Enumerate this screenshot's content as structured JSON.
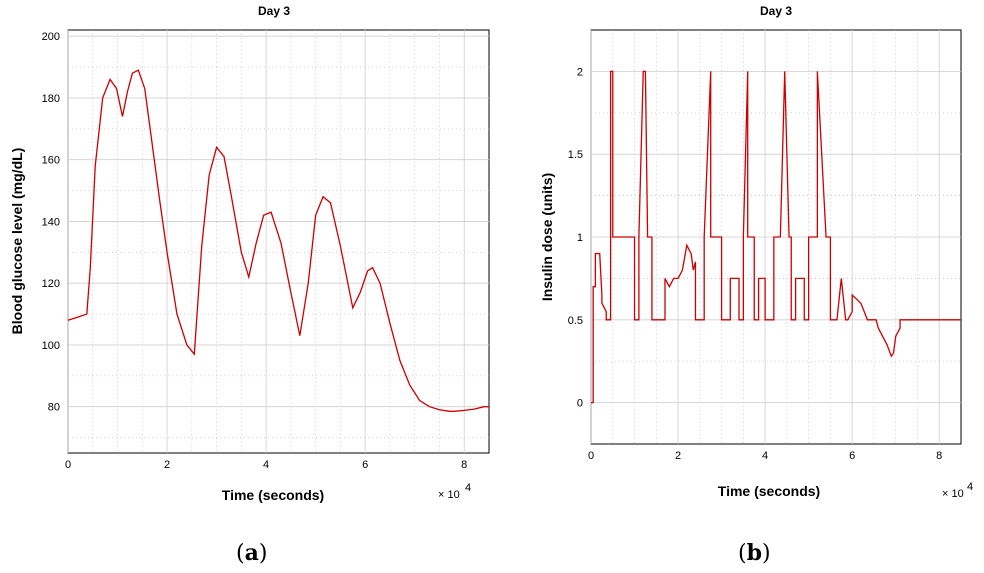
{
  "chart_data": [
    {
      "type": "line",
      "panel_label": "a",
      "title": "Day 3",
      "xlabel": "Time (seconds)",
      "ylabel": "Blood glucose level (mg/dL)",
      "x_exponent": "4",
      "xlim": [
        0,
        8.5
      ],
      "ylim": [
        65,
        202
      ],
      "xticks": [
        "0",
        "2",
        "4",
        "6",
        "8"
      ],
      "yticks": [
        "80",
        "100",
        "120",
        "140",
        "160",
        "180",
        "200"
      ],
      "grid": true,
      "color": "#cc0000",
      "series": [
        {
          "x": [
            0,
            0.2,
            0.38,
            0.45,
            0.55,
            0.7,
            0.85,
            0.98,
            1.1,
            1.2,
            1.3,
            1.42,
            1.55,
            1.7,
            1.85,
            2.0,
            2.2,
            2.4,
            2.55,
            2.7,
            2.85,
            3.0,
            3.15,
            3.3,
            3.5,
            3.65,
            3.8,
            3.95,
            4.1,
            4.3,
            4.5,
            4.68,
            4.85,
            5.0,
            5.15,
            5.3,
            5.5,
            5.75,
            5.9,
            6.05,
            6.15,
            6.3,
            6.5,
            6.7,
            6.9,
            7.1,
            7.3,
            7.5,
            7.7,
            7.8,
            8.0,
            8.2,
            8.4,
            8.5
          ],
          "y": [
            108,
            109,
            110,
            125,
            158,
            180,
            186,
            183,
            174,
            182,
            188,
            189,
            183,
            165,
            147,
            130,
            110,
            100,
            97,
            132,
            155,
            164,
            161,
            148,
            130,
            122,
            133,
            142,
            143,
            133,
            117,
            103,
            120,
            142,
            148,
            146,
            132,
            112,
            117,
            124,
            125,
            120,
            107,
            95,
            87,
            82,
            80,
            79,
            78.5,
            78.5,
            78.8,
            79.2,
            80,
            80
          ]
        }
      ]
    },
    {
      "type": "line",
      "panel_label": "b",
      "title": "Day 3",
      "xlabel": "Time (seconds)",
      "ylabel": "Insulin dose (units)",
      "x_exponent": "4",
      "xlim": [
        0,
        8.5
      ],
      "ylim": [
        -0.25,
        2.25
      ],
      "xticks": [
        "0",
        "2",
        "4",
        "6",
        "8"
      ],
      "yticks": [
        "0",
        "0.5",
        "1",
        "1.5",
        "2"
      ],
      "grid": true,
      "color": "#cc0000",
      "series": [
        {
          "x": [
            0,
            0.05,
            0.05,
            0.1,
            0.1,
            0.2,
            0.25,
            0.25,
            0.35,
            0.35,
            0.45,
            0.45,
            0.5,
            0.5,
            0.7,
            0.7,
            1.0,
            1.0,
            1.1,
            1.1,
            1.2,
            1.25,
            1.3,
            1.4,
            1.4,
            1.6,
            1.6,
            1.7,
            1.7,
            1.8,
            1.9,
            1.9,
            2.0,
            2.1,
            2.2,
            2.3,
            2.35,
            2.4,
            2.4,
            2.5,
            2.5,
            2.6,
            2.6,
            2.75,
            2.75,
            3.0,
            3.0,
            3.2,
            3.2,
            3.4,
            3.4,
            3.5,
            3.5,
            3.6,
            3.6,
            3.75,
            3.75,
            3.85,
            3.85,
            4.0,
            4.0,
            4.2,
            4.2,
            4.35,
            4.45,
            4.55,
            4.6,
            4.6,
            4.7,
            4.7,
            4.9,
            4.9,
            5.0,
            5.0,
            5.2,
            5.2,
            5.4,
            5.5,
            5.5,
            5.65,
            5.75,
            5.75,
            5.85,
            5.9,
            6.0,
            6.0,
            6.2,
            6.35,
            6.45,
            6.55,
            6.6,
            6.8,
            6.9,
            6.95,
            7.0,
            7.1,
            7.1,
            7.3,
            7.3,
            8.5
          ],
          "y": [
            0,
            0,
            0.7,
            0.7,
            0.9,
            0.9,
            0.65,
            0.6,
            0.55,
            0.5,
            0.5,
            2,
            2,
            1,
            1,
            1,
            1,
            0.5,
            0.5,
            1,
            2,
            2,
            1,
            1,
            0.5,
            0.5,
            0.5,
            0.5,
            0.75,
            0.7,
            0.75,
            0.75,
            0.75,
            0.8,
            0.95,
            0.9,
            0.8,
            0.85,
            0.5,
            0.5,
            0.5,
            0.5,
            1,
            2,
            1,
            1,
            0.5,
            0.5,
            0.75,
            0.75,
            0.5,
            0.5,
            1,
            2,
            1,
            1,
            0.5,
            0.5,
            0.75,
            0.75,
            0.5,
            0.5,
            1,
            1,
            2,
            1,
            1,
            0.5,
            0.5,
            0.75,
            0.75,
            0.5,
            0.5,
            1,
            1,
            2,
            1,
            1,
            0.5,
            0.5,
            0.75,
            0.75,
            0.5,
            0.5,
            0.55,
            0.65,
            0.6,
            0.5,
            0.5,
            0.5,
            0.45,
            0.35,
            0.28,
            0.3,
            0.4,
            0.45,
            0.5,
            0.5,
            0.5,
            0.5
          ]
        }
      ]
    }
  ]
}
